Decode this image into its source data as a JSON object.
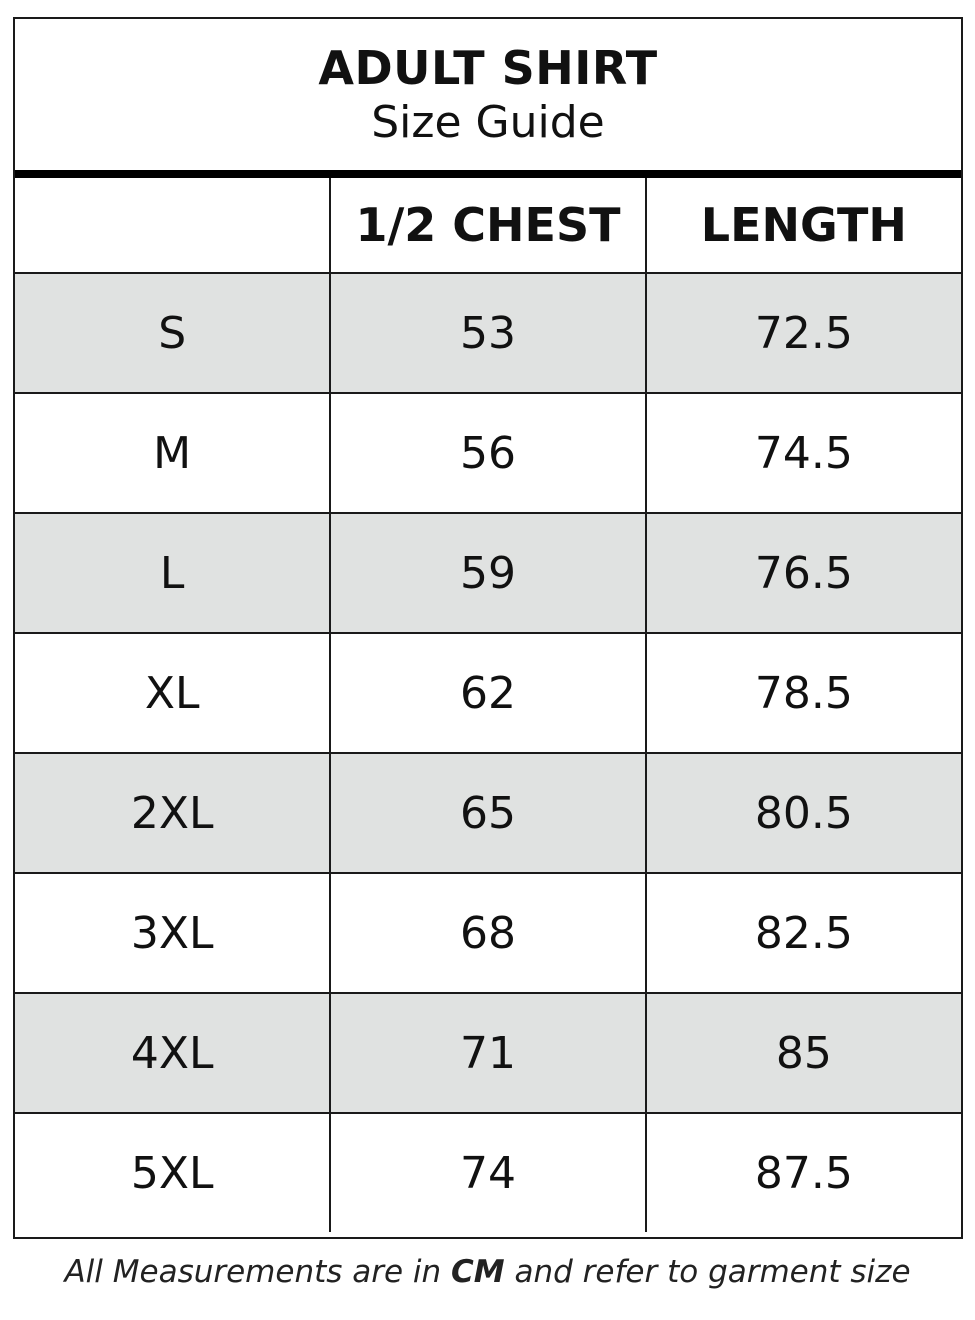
{
  "title": "ADULT SHIRT",
  "subtitle": "Size Guide",
  "columns": [
    "",
    "1/2 CHEST",
    "LENGTH"
  ],
  "rows": [
    {
      "size": "S",
      "chest": "53",
      "length": "72.5"
    },
    {
      "size": "M",
      "chest": "56",
      "length": "74.5"
    },
    {
      "size": "L",
      "chest": "59",
      "length": "76.5"
    },
    {
      "size": "XL",
      "chest": "62",
      "length": "78.5"
    },
    {
      "size": "2XL",
      "chest": "65",
      "length": "80.5"
    },
    {
      "size": "3XL",
      "chest": "68",
      "length": "82.5"
    },
    {
      "size": "4XL",
      "chest": "71",
      "length": "85"
    },
    {
      "size": "5XL",
      "chest": "74",
      "length": "87.5"
    }
  ],
  "footer": {
    "before": "All Measurements are in ",
    "unit": "CM",
    "after": " and refer to garment size"
  },
  "colors": {
    "shaded_row": "#e0e2e1",
    "border": "#1a1a1a"
  }
}
